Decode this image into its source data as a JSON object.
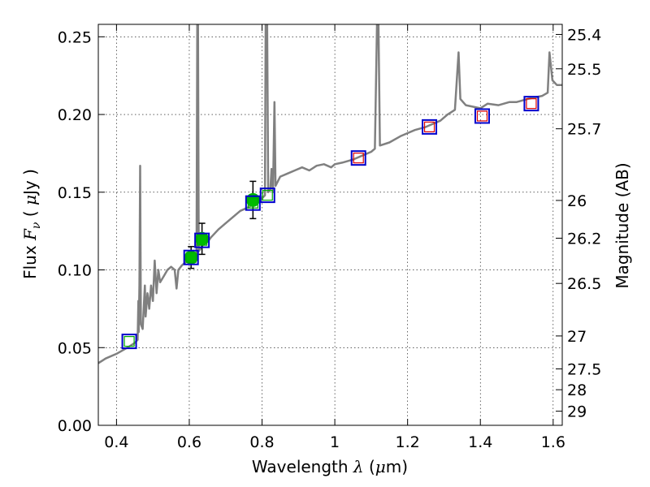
{
  "chart_data": {
    "type": "scatter",
    "x_label": {
      "prefix": "Wavelength  ",
      "symbol": "λ",
      "unit_open": " (",
      "unit_mu": "μ",
      "unit_rest": "m)"
    },
    "y_label": {
      "prefix": "Flux  ",
      "symbol": "F",
      "subscript": "ν",
      "unit_open": "  (  ",
      "unit_mu": "μ",
      "unit_rest": "Jy  )"
    },
    "y2_label": "Magnitude (AB)",
    "xlim": [
      0.35,
      1.625
    ],
    "ylim": [
      0.0,
      0.258
    ],
    "x_ticks": [
      {
        "value": 0.4,
        "label": "0.4"
      },
      {
        "value": 0.6,
        "label": "0.6"
      },
      {
        "value": 0.8,
        "label": "0.8"
      },
      {
        "value": 1.0,
        "label": "1"
      },
      {
        "value": 1.2,
        "label": "1.2"
      },
      {
        "value": 1.4,
        "label": "1.4"
      },
      {
        "value": 1.6,
        "label": "1.6"
      }
    ],
    "y_ticks": [
      {
        "value": 0.0,
        "label": "0.00"
      },
      {
        "value": 0.05,
        "label": "0.05"
      },
      {
        "value": 0.1,
        "label": "0.10"
      },
      {
        "value": 0.15,
        "label": "0.15"
      },
      {
        "value": 0.2,
        "label": "0.20"
      },
      {
        "value": 0.25,
        "label": "0.25"
      }
    ],
    "mag_ticks": [
      {
        "label": "25.4",
        "flux": 0.2515
      },
      {
        "label": "25.5",
        "flux": 0.2294
      },
      {
        "label": "25.7",
        "flux": 0.1908
      },
      {
        "label": "26",
        "flux": 0.1447
      },
      {
        "label": "26.2",
        "flux": 0.1204
      },
      {
        "label": "26.5",
        "flux": 0.0913
      },
      {
        "label": "27",
        "flux": 0.0575
      },
      {
        "label": "27.5",
        "flux": 0.0363
      },
      {
        "label": "28",
        "flux": 0.0229
      },
      {
        "label": "29",
        "flux": 0.0091
      }
    ],
    "grid": true,
    "colors": {
      "spectrum": "#808080",
      "observed": "#00bb00",
      "model_box": "#0000cc",
      "blue_box_inner": "#00aa00",
      "red_box_inner": "#dd0000",
      "errorbar": "#000000"
    },
    "spectrum": [
      [
        0.35,
        0.04
      ],
      [
        0.37,
        0.043
      ],
      [
        0.4,
        0.046
      ],
      [
        0.43,
        0.05
      ],
      [
        0.45,
        0.053
      ],
      [
        0.458,
        0.055
      ],
      [
        0.46,
        0.08
      ],
      [
        0.461,
        0.06
      ],
      [
        0.463,
        0.09
      ],
      [
        0.465,
        0.167
      ],
      [
        0.467,
        0.065
      ],
      [
        0.472,
        0.062
      ],
      [
        0.478,
        0.09
      ],
      [
        0.48,
        0.07
      ],
      [
        0.485,
        0.085
      ],
      [
        0.49,
        0.075
      ],
      [
        0.495,
        0.09
      ],
      [
        0.5,
        0.08
      ],
      [
        0.505,
        0.106
      ],
      [
        0.51,
        0.085
      ],
      [
        0.515,
        0.1
      ],
      [
        0.52,
        0.092
      ],
      [
        0.53,
        0.096
      ],
      [
        0.54,
        0.1
      ],
      [
        0.55,
        0.102
      ],
      [
        0.56,
        0.1
      ],
      [
        0.565,
        0.088
      ],
      [
        0.57,
        0.1
      ],
      [
        0.58,
        0.103
      ],
      [
        0.59,
        0.105
      ],
      [
        0.6,
        0.107
      ],
      [
        0.61,
        0.108
      ],
      [
        0.62,
        0.11
      ],
      [
        0.622,
        0.258
      ],
      [
        0.624,
        0.258
      ],
      [
        0.626,
        0.112
      ],
      [
        0.64,
        0.117
      ],
      [
        0.65,
        0.118
      ],
      [
        0.66,
        0.121
      ],
      [
        0.68,
        0.126
      ],
      [
        0.7,
        0.13
      ],
      [
        0.72,
        0.134
      ],
      [
        0.74,
        0.138
      ],
      [
        0.76,
        0.14
      ],
      [
        0.78,
        0.143
      ],
      [
        0.8,
        0.146
      ],
      [
        0.808,
        0.148
      ],
      [
        0.81,
        0.258
      ],
      [
        0.814,
        0.258
      ],
      [
        0.817,
        0.15
      ],
      [
        0.823,
        0.152
      ],
      [
        0.826,
        0.165
      ],
      [
        0.83,
        0.15
      ],
      [
        0.834,
        0.208
      ],
      [
        0.837,
        0.154
      ],
      [
        0.85,
        0.16
      ],
      [
        0.87,
        0.162
      ],
      [
        0.89,
        0.164
      ],
      [
        0.91,
        0.166
      ],
      [
        0.93,
        0.164
      ],
      [
        0.95,
        0.167
      ],
      [
        0.97,
        0.168
      ],
      [
        0.99,
        0.166
      ],
      [
        1.0,
        0.168
      ],
      [
        1.02,
        0.169
      ],
      [
        1.05,
        0.171
      ],
      [
        1.08,
        0.174
      ],
      [
        1.1,
        0.176
      ],
      [
        1.11,
        0.178
      ],
      [
        1.116,
        0.258
      ],
      [
        1.12,
        0.258
      ],
      [
        1.124,
        0.18
      ],
      [
        1.15,
        0.182
      ],
      [
        1.18,
        0.186
      ],
      [
        1.2,
        0.188
      ],
      [
        1.22,
        0.19
      ],
      [
        1.25,
        0.192
      ],
      [
        1.27,
        0.194
      ],
      [
        1.29,
        0.196
      ],
      [
        1.31,
        0.2
      ],
      [
        1.33,
        0.203
      ],
      [
        1.34,
        0.24
      ],
      [
        1.345,
        0.21
      ],
      [
        1.36,
        0.206
      ],
      [
        1.38,
        0.205
      ],
      [
        1.4,
        0.204
      ],
      [
        1.42,
        0.207
      ],
      [
        1.45,
        0.206
      ],
      [
        1.48,
        0.208
      ],
      [
        1.5,
        0.208
      ],
      [
        1.53,
        0.21
      ],
      [
        1.55,
        0.211
      ],
      [
        1.57,
        0.212
      ],
      [
        1.585,
        0.214
      ],
      [
        1.59,
        0.24
      ],
      [
        1.598,
        0.222
      ],
      [
        1.61,
        0.219
      ],
      [
        1.625,
        0.219
      ]
    ],
    "observed": [
      {
        "x": 0.605,
        "y": 0.108,
        "err": 0.007
      },
      {
        "x": 0.635,
        "y": 0.12,
        "err": 0.01
      },
      {
        "x": 0.775,
        "y": 0.145,
        "err": 0.012
      }
    ],
    "model_points_blue": [
      {
        "x": 0.435,
        "y": 0.054
      },
      {
        "x": 0.605,
        "y": 0.108
      },
      {
        "x": 0.635,
        "y": 0.119
      },
      {
        "x": 0.775,
        "y": 0.143
      },
      {
        "x": 0.815,
        "y": 0.148
      }
    ],
    "model_points_red": [
      {
        "x": 1.065,
        "y": 0.172
      },
      {
        "x": 1.26,
        "y": 0.192
      },
      {
        "x": 1.405,
        "y": 0.199
      },
      {
        "x": 1.54,
        "y": 0.207
      }
    ]
  }
}
